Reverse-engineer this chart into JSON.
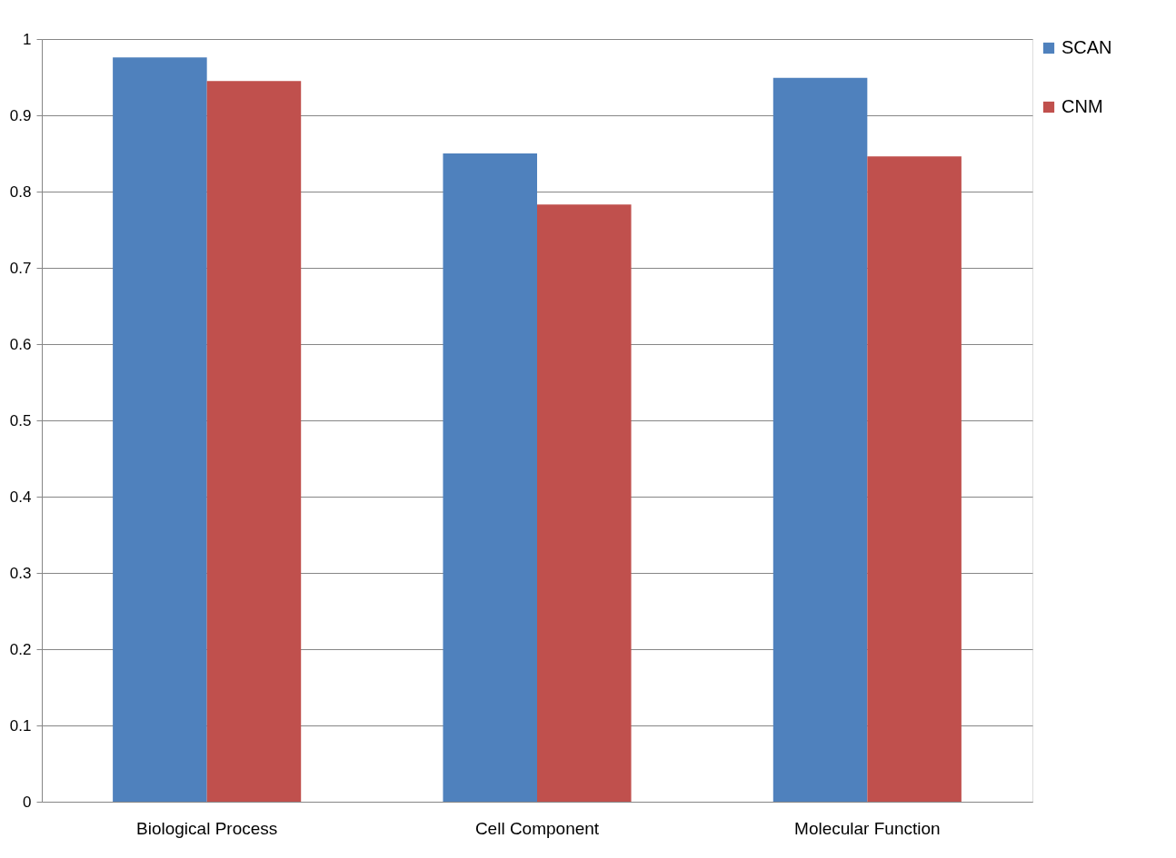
{
  "chart_data": {
    "type": "bar",
    "categories": [
      "Biological Process",
      "Cell Component",
      "Molecular Function"
    ],
    "series": [
      {
        "name": "SCAN",
        "color": "#4f81bd",
        "values": [
          0.976,
          0.85,
          0.949
        ]
      },
      {
        "name": "CNM",
        "color": "#c0504d",
        "values": [
          0.945,
          0.783,
          0.846
        ]
      }
    ],
    "ylim": [
      0,
      1
    ],
    "yticks": [
      0,
      0.1,
      0.2,
      0.3,
      0.4,
      0.5,
      0.6,
      0.7,
      0.8,
      0.9,
      1
    ],
    "grid": "y",
    "legend": "top right"
  }
}
